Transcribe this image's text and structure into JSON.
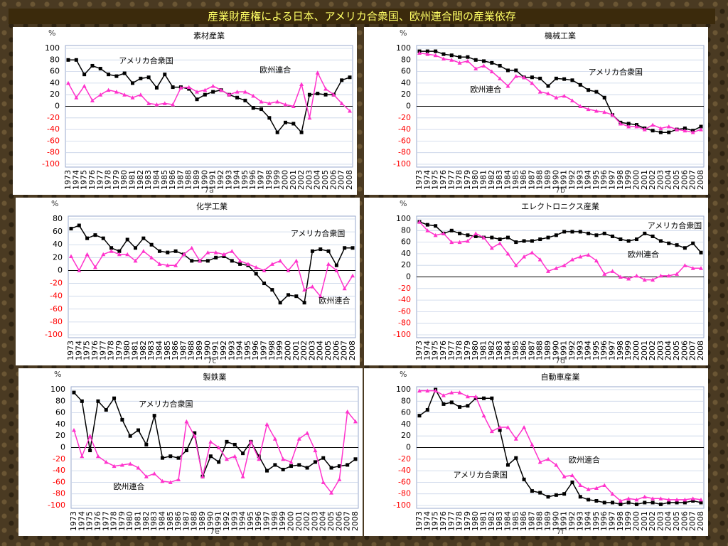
{
  "title": "産業財産権による日本、アメリカ合衆国、欧州連合間の産業依存",
  "chart_data": [
    {
      "type": "line",
      "title": "素材産業",
      "y_unit": "%",
      "caption": "7a",
      "ylim": [
        -100,
        100
      ],
      "yticks": [
        -100,
        -80,
        -60,
        -40,
        -20,
        0,
        20,
        40,
        60,
        80,
        100
      ],
      "grid": true,
      "negative_tick_color": "#ff0000",
      "categories": [
        "1973",
        "1974",
        "1975",
        "1976",
        "1977",
        "1978",
        "1979",
        "1980",
        "1981",
        "1982",
        "1983",
        "1984",
        "1985",
        "1986",
        "1987",
        "1988",
        "1989",
        "1990",
        "1991",
        "1992",
        "1993",
        "1994",
        "1995",
        "1996",
        "1997",
        "1998",
        "1999",
        "2000",
        "2001",
        "2002",
        "2003",
        "2004",
        "2005",
        "2006",
        "2007",
        "2008"
      ],
      "series": [
        {
          "name": "アメリカ合衆国",
          "color": "#000000",
          "marker": "square",
          "values": [
            80,
            80,
            55,
            70,
            65,
            55,
            52,
            57,
            40,
            48,
            50,
            32,
            55,
            33,
            33,
            30,
            12,
            20,
            25,
            28,
            20,
            15,
            10,
            -3,
            -5,
            -20,
            -45,
            -28,
            -30,
            -45,
            20,
            22,
            20,
            20,
            45,
            50
          ]
        },
        {
          "name": "欧州連合",
          "color": "#ff33cc",
          "marker": "triangle",
          "values": [
            40,
            15,
            35,
            10,
            20,
            28,
            25,
            20,
            15,
            20,
            5,
            3,
            5,
            3,
            32,
            33,
            25,
            28,
            35,
            28,
            20,
            25,
            25,
            18,
            8,
            5,
            8,
            3,
            0,
            38,
            -20,
            58,
            30,
            20,
            5,
            -8
          ]
        }
      ]
    },
    {
      "type": "line",
      "title": "機械工業",
      "y_unit": "%",
      "caption": "7b",
      "ylim": [
        -100,
        100
      ],
      "yticks": [
        -100,
        -80,
        -60,
        -40,
        -20,
        0,
        20,
        40,
        60,
        80,
        100
      ],
      "grid": true,
      "negative_tick_color": "#ff0000",
      "categories": [
        "1973",
        "1974",
        "1975",
        "1976",
        "1977",
        "1978",
        "1979",
        "1980",
        "1981",
        "1982",
        "1983",
        "1984",
        "1985",
        "1986",
        "1987",
        "1988",
        "1989",
        "1990",
        "1991",
        "1992",
        "1993",
        "1994",
        "1995",
        "1996",
        "1997",
        "1998",
        "1999",
        "2000",
        "2001",
        "2002",
        "2003",
        "2004",
        "2005",
        "2006",
        "2007",
        "2008"
      ],
      "series": [
        {
          "name": "アメリカ合衆国",
          "color": "#000000",
          "marker": "square",
          "values": [
            95,
            95,
            95,
            90,
            88,
            85,
            85,
            80,
            78,
            75,
            70,
            62,
            62,
            50,
            50,
            48,
            35,
            48,
            47,
            45,
            37,
            28,
            25,
            15,
            -15,
            -28,
            -30,
            -32,
            -38,
            -42,
            -45,
            -45,
            -40,
            -38,
            -42,
            -35
          ]
        },
        {
          "name": "欧州連合",
          "color": "#ff33cc",
          "marker": "triangle",
          "values": [
            92,
            90,
            88,
            82,
            80,
            75,
            78,
            65,
            70,
            60,
            48,
            35,
            52,
            50,
            40,
            25,
            22,
            15,
            18,
            10,
            0,
            -5,
            -8,
            -10,
            -15,
            -30,
            -35,
            -35,
            -40,
            -32,
            -38,
            -35,
            -40,
            -42,
            -45,
            -40
          ]
        }
      ]
    },
    {
      "type": "line",
      "title": "化学工業",
      "y_unit": "%",
      "caption": "7c",
      "ylim": [
        -100,
        80
      ],
      "yticks": [
        -100,
        -80,
        -60,
        -40,
        -20,
        0,
        20,
        40,
        60,
        80
      ],
      "grid": true,
      "negative_tick_color": "#ff0000",
      "categories": [
        "1973",
        "1974",
        "1975",
        "1976",
        "1977",
        "1978",
        "1979",
        "1980",
        "1981",
        "1982",
        "1983",
        "1984",
        "1985",
        "1986",
        "1987",
        "1988",
        "1989",
        "1990",
        "1991",
        "1992",
        "1993",
        "1994",
        "1995",
        "1996",
        "1997",
        "1998",
        "1999",
        "2000",
        "2001",
        "2002",
        "2003",
        "2004",
        "2005",
        "2006",
        "2007",
        "2008"
      ],
      "series": [
        {
          "name": "アメリカ合衆国",
          "color": "#000000",
          "marker": "square",
          "values": [
            65,
            70,
            50,
            55,
            50,
            35,
            30,
            48,
            35,
            50,
            40,
            30,
            28,
            30,
            25,
            15,
            15,
            15,
            20,
            22,
            15,
            10,
            8,
            -5,
            -20,
            -30,
            -50,
            -38,
            -40,
            -50,
            30,
            33,
            30,
            8,
            35,
            35
          ]
        },
        {
          "name": "欧州連合",
          "color": "#ff33cc",
          "marker": "triangle",
          "values": [
            22,
            0,
            25,
            5,
            25,
            30,
            25,
            25,
            15,
            30,
            20,
            10,
            8,
            8,
            25,
            35,
            15,
            28,
            28,
            25,
            30,
            15,
            10,
            5,
            0,
            10,
            15,
            0,
            15,
            -30,
            -25,
            -40,
            10,
            0,
            -28,
            -8
          ]
        }
      ]
    },
    {
      "type": "line",
      "title": "エレクトロニクス産業",
      "y_unit": "%",
      "caption": "7d",
      "ylim": [
        -100,
        100
      ],
      "yticks": [
        -100,
        -80,
        -60,
        -40,
        -20,
        0,
        20,
        40,
        60,
        80,
        100
      ],
      "grid": true,
      "negative_tick_color": "#ff0000",
      "categories": [
        "1973",
        "1974",
        "1975",
        "1976",
        "1977",
        "1978",
        "1979",
        "1980",
        "1981",
        "1982",
        "1983",
        "1984",
        "1985",
        "1986",
        "1987",
        "1988",
        "1989",
        "1990",
        "1991",
        "1992",
        "1993",
        "1994",
        "1995",
        "1996",
        "1997",
        "1998",
        "1999",
        "2000",
        "2001",
        "2002",
        "2003",
        "2004",
        "2005",
        "2006",
        "2007",
        "2008"
      ],
      "series": [
        {
          "name": "アメリカ合衆国",
          "color": "#000000",
          "marker": "square",
          "values": [
            95,
            90,
            88,
            75,
            80,
            75,
            72,
            70,
            68,
            68,
            65,
            68,
            60,
            62,
            62,
            65,
            68,
            72,
            78,
            78,
            78,
            75,
            72,
            75,
            70,
            65,
            62,
            65,
            75,
            70,
            62,
            58,
            55,
            50,
            58,
            42
          ]
        },
        {
          "name": "欧州連合",
          "color": "#ff33cc",
          "marker": "triangle",
          "values": [
            95,
            80,
            72,
            75,
            60,
            60,
            62,
            75,
            68,
            50,
            58,
            40,
            20,
            35,
            42,
            30,
            10,
            15,
            20,
            30,
            35,
            38,
            28,
            5,
            10,
            0,
            -3,
            2,
            -5,
            -5,
            2,
            2,
            5,
            20,
            15,
            15
          ]
        }
      ]
    },
    {
      "type": "line",
      "title": "製鉄業",
      "y_unit": "%",
      "caption": "7e",
      "ylim": [
        -100,
        100
      ],
      "yticks": [
        -100,
        -80,
        -60,
        -40,
        -20,
        0,
        20,
        40,
        60,
        80,
        100
      ],
      "grid": true,
      "negative_tick_color": "#ff0000",
      "categories": [
        "1973",
        "1974",
        "1975",
        "1976",
        "1977",
        "1978",
        "1979",
        "1980",
        "1981",
        "1982",
        "1983",
        "1984",
        "1985",
        "1986",
        "1987",
        "1988",
        "1989",
        "1990",
        "1991",
        "1992",
        "1993",
        "1994",
        "1995",
        "1996",
        "1997",
        "1998",
        "1999",
        "2000",
        "2001",
        "2002",
        "2003",
        "2004",
        "2005",
        "2006",
        "2007",
        "2008"
      ],
      "series": [
        {
          "name": "アメリカ合衆国",
          "color": "#000000",
          "marker": "square",
          "values": [
            95,
            80,
            -5,
            80,
            65,
            85,
            48,
            20,
            30,
            5,
            55,
            -18,
            -15,
            -18,
            -5,
            25,
            -50,
            -15,
            -25,
            10,
            5,
            -10,
            10,
            -15,
            -40,
            -30,
            -38,
            -32,
            -30,
            -35,
            -25,
            -18,
            -35,
            -32,
            -30,
            -20
          ]
        },
        {
          "name": "欧州連合",
          "color": "#ff33cc",
          "marker": "triangle",
          "values": [
            30,
            -15,
            20,
            -15,
            -25,
            -32,
            -30,
            -28,
            -35,
            -50,
            -45,
            -58,
            -60,
            -55,
            45,
            20,
            -50,
            10,
            0,
            -20,
            -15,
            -50,
            10,
            -20,
            40,
            15,
            -20,
            -25,
            15,
            25,
            -5,
            -60,
            -78,
            -55,
            62,
            45
          ]
        }
      ]
    },
    {
      "type": "line",
      "title": "自動車産業",
      "y_unit": "%",
      "caption": "7f",
      "ylim": [
        -100,
        100
      ],
      "yticks": [
        -100,
        -80,
        -60,
        -40,
        -20,
        0,
        20,
        40,
        60,
        80,
        100
      ],
      "grid": true,
      "negative_tick_color": "#ff0000",
      "categories": [
        "1973",
        "1974",
        "1975",
        "1976",
        "1977",
        "1978",
        "1979",
        "1980",
        "1981",
        "1982",
        "1983",
        "1984",
        "1985",
        "1986",
        "1987",
        "1988",
        "1989",
        "1990",
        "1991",
        "1992",
        "1993",
        "1994",
        "1995",
        "1996",
        "1997",
        "1998",
        "1999",
        "2000",
        "2001",
        "2002",
        "2003",
        "2004",
        "2005",
        "2006",
        "2007",
        "2008"
      ],
      "series": [
        {
          "name": "アメリカ合衆国",
          "color": "#000000",
          "marker": "square",
          "values": [
            55,
            65,
            100,
            75,
            78,
            70,
            72,
            85,
            85,
            85,
            30,
            -30,
            -18,
            -55,
            -75,
            -78,
            -85,
            -82,
            -80,
            -60,
            -85,
            -90,
            -92,
            -95,
            -95,
            -98,
            -95,
            -98,
            -95,
            -95,
            -98,
            -95,
            -95,
            -95,
            -92,
            -95
          ]
        },
        {
          "name": "欧州連合",
          "color": "#ff33cc",
          "marker": "triangle",
          "values": [
            98,
            98,
            98,
            90,
            95,
            95,
            88,
            88,
            55,
            28,
            35,
            35,
            15,
            35,
            5,
            -25,
            -20,
            -30,
            -50,
            -48,
            -65,
            -72,
            -70,
            -65,
            -80,
            -92,
            -88,
            -90,
            -85,
            -88,
            -88,
            -90,
            -90,
            -90,
            -88,
            -90
          ]
        }
      ]
    }
  ]
}
